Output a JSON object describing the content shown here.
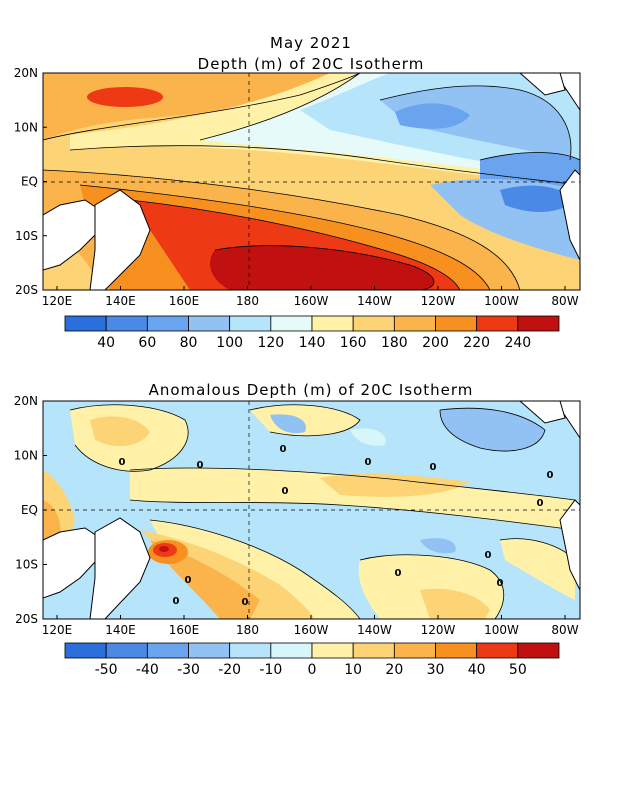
{
  "panels": [
    {
      "title_lines": [
        "May 2021",
        "Depth (m) of 20C Isotherm"
      ],
      "x_ticks": [
        "120E",
        "140E",
        "160E",
        "180",
        "160W",
        "140W",
        "120W",
        "100W",
        "80W"
      ],
      "y_ticks": [
        "20N",
        "10N",
        "EQ",
        "10S",
        "20S"
      ],
      "colorbar": {
        "labels": [
          "40",
          "60",
          "80",
          "100",
          "120",
          "140",
          "160",
          "180",
          "200",
          "220",
          "240"
        ],
        "colors": [
          "#2a6fdc",
          "#4a8ae6",
          "#6aa4ee",
          "#92c2f4",
          "#b6e4fa",
          "#e6fafa",
          "#fff2a8",
          "#fcd476",
          "#fbb34c",
          "#f7901f",
          "#ee3a14",
          "#c01010"
        ]
      }
    },
    {
      "title_lines": [
        "Anomalous Depth (m) of 20C Isotherm"
      ],
      "x_ticks": [
        "120E",
        "140E",
        "160E",
        "180",
        "160W",
        "140W",
        "120W",
        "100W",
        "80W"
      ],
      "y_ticks": [
        "20N",
        "10N",
        "EQ",
        "10S",
        "20S"
      ],
      "colorbar": {
        "labels": [
          "-50",
          "-40",
          "-30",
          "-20",
          "-10",
          "0",
          "10",
          "20",
          "30",
          "40",
          "50"
        ],
        "colors": [
          "#2a6fdc",
          "#4a8ae6",
          "#6aa4ee",
          "#92c2f4",
          "#b6e4fa",
          "#d6f6fa",
          "#fff2a8",
          "#fcd476",
          "#fbb34c",
          "#f7901f",
          "#ee3a14",
          "#c01010"
        ]
      },
      "contour_labels": [
        "0",
        "0",
        "0",
        "0",
        "0",
        "0",
        "0",
        "0",
        "0",
        "0",
        "0",
        "0",
        "0",
        "0"
      ]
    }
  ]
}
